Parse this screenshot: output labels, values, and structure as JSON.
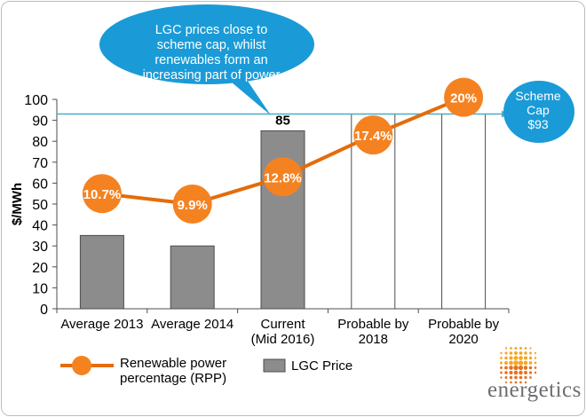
{
  "chart_data": {
    "type": "bar+line",
    "title": "",
    "ylabel": "$/MWh",
    "ylim": [
      0,
      100
    ],
    "yticks": [
      0,
      10,
      20,
      30,
      40,
      50,
      60,
      70,
      80,
      90,
      100
    ],
    "categories": [
      [
        "Average 2013"
      ],
      [
        "Average 2014"
      ],
      [
        "Current",
        "(Mid 2016)"
      ],
      [
        "Probable by",
        "2018"
      ],
      [
        "Probable by",
        "2020"
      ]
    ],
    "bars": {
      "name": "LGC Price",
      "values": [
        35,
        30,
        85,
        93,
        93
      ],
      "styles": [
        "solid",
        "solid",
        "solid",
        "outline",
        "outline"
      ],
      "labels": [
        "",
        "",
        "85",
        "",
        ""
      ]
    },
    "line": {
      "name": "Renewable power percentage (RPP)",
      "name_lines": [
        "Renewable power",
        "percentage (RPP)"
      ],
      "values": [
        10.7,
        9.9,
        12.8,
        17.4,
        20
      ],
      "labels": [
        "10.7%",
        "9.9%",
        "12.8%",
        "17.4%",
        "20%"
      ],
      "positions_on_y_axis": [
        55,
        50,
        63,
        83,
        101
      ]
    },
    "cap_line": {
      "value": 93,
      "label_lines": [
        "Scheme",
        "Cap",
        "$93"
      ]
    },
    "callout_lines": [
      "LGC prices close to",
      "scheme cap, whilst",
      "renewables form an",
      "increasing part of power"
    ],
    "colors": {
      "bar_fill": "#8c8c8c",
      "bar_stroke": "#4d4d4d",
      "line": "#e46c0a",
      "marker": "#f58220",
      "cap_line": "#4bacc6",
      "bubble": "#1a9bd7",
      "axis": "#4d4d4d"
    }
  },
  "logo": {
    "name": "energetics",
    "icon": "dotted-sphere-icon"
  }
}
